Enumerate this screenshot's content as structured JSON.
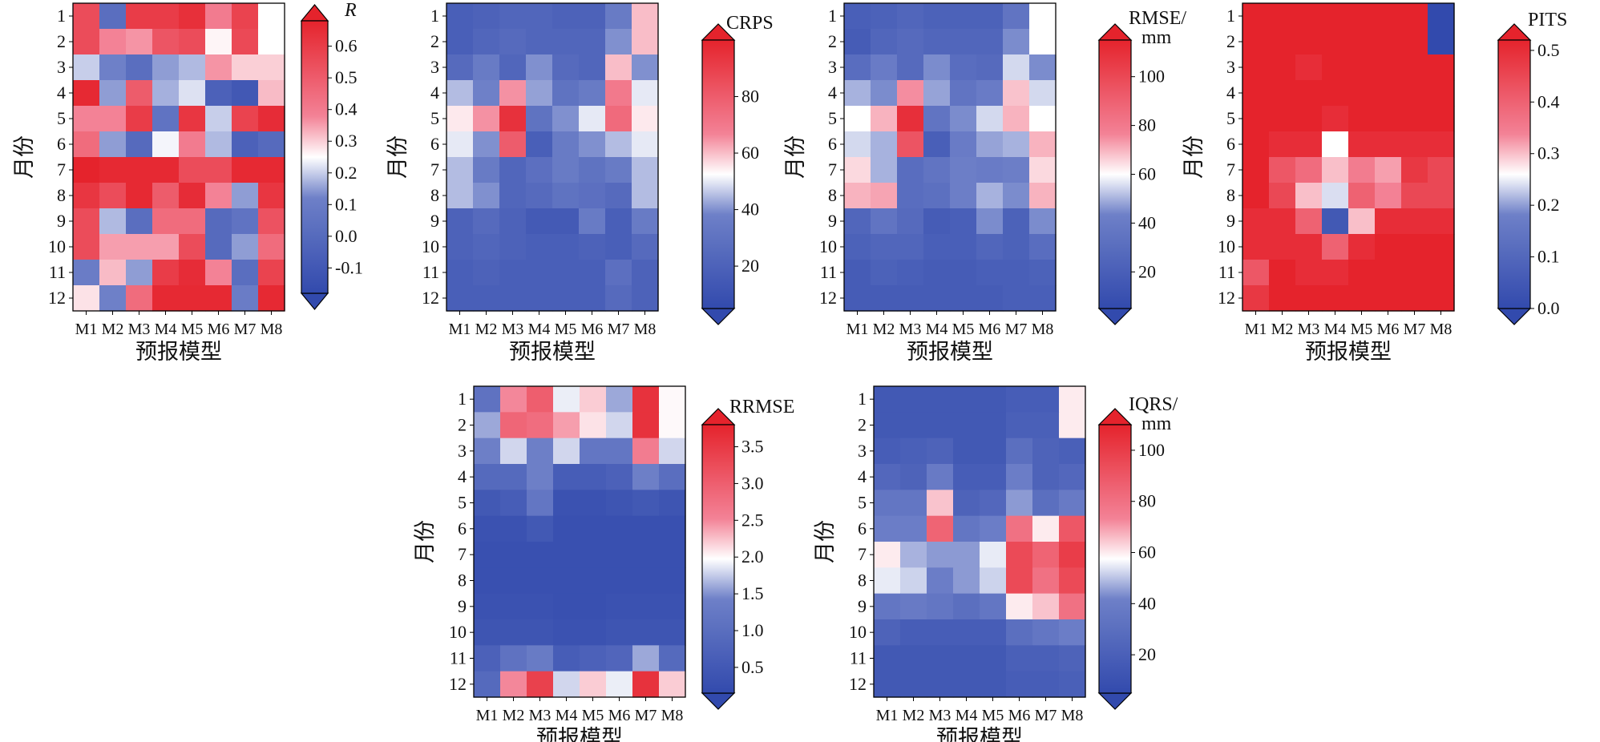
{
  "chart_data": [
    {
      "type": "heatmap",
      "title": "R",
      "xlabel": "预报模型",
      "ylabel": "月份",
      "x": [
        "M1",
        "M2",
        "M3",
        "M4",
        "M5",
        "M6",
        "M7",
        "M8"
      ],
      "y": [
        "1",
        "2",
        "3",
        "4",
        "5",
        "6",
        "7",
        "8",
        "9",
        "10",
        "11",
        "12"
      ],
      "colorbar": {
        "ticks": [
          -0.1,
          0.0,
          0.1,
          0.2,
          0.3,
          0.4,
          0.5,
          0.6
        ],
        "vmin": -0.18,
        "vmax": 0.68,
        "extend": "both"
      },
      "values": [
        [
          0.55,
          0.02,
          0.6,
          0.6,
          0.64,
          0.4,
          0.58,
          0.25
        ],
        [
          0.55,
          0.38,
          0.36,
          0.52,
          0.55,
          0.26,
          0.56,
          0.25
        ],
        [
          0.2,
          0.12,
          0.02,
          0.15,
          0.18,
          0.36,
          0.3,
          0.3
        ],
        [
          0.66,
          0.15,
          0.5,
          0.17,
          0.22,
          -0.05,
          -0.1,
          0.32
        ],
        [
          0.38,
          0.38,
          0.6,
          0.05,
          0.62,
          0.2,
          0.58,
          0.65
        ],
        [
          0.45,
          0.15,
          0.0,
          0.24,
          0.4,
          0.18,
          -0.05,
          0.0
        ],
        [
          0.68,
          0.66,
          0.66,
          0.66,
          0.55,
          0.55,
          0.66,
          0.66
        ],
        [
          0.62,
          0.55,
          0.66,
          0.5,
          0.65,
          0.38,
          0.15,
          0.62
        ],
        [
          0.55,
          0.18,
          0.02,
          0.45,
          0.45,
          0.0,
          0.05,
          0.53
        ],
        [
          0.55,
          0.35,
          0.35,
          0.35,
          0.55,
          0.0,
          0.15,
          0.45
        ],
        [
          0.1,
          0.32,
          0.15,
          0.6,
          0.65,
          0.38,
          0.02,
          0.58
        ],
        [
          0.28,
          0.12,
          0.45,
          0.66,
          0.66,
          0.66,
          0.1,
          0.66
        ]
      ]
    },
    {
      "type": "heatmap",
      "title": "CRPS",
      "xlabel": "预报模型",
      "ylabel": "月份",
      "x": [
        "M1",
        "M2",
        "M3",
        "M4",
        "M5",
        "M6",
        "M7",
        "M8"
      ],
      "y": [
        "1",
        "2",
        "3",
        "4",
        "5",
        "6",
        "7",
        "8",
        "9",
        "10",
        "11",
        "12"
      ],
      "colorbar": {
        "ticks": [
          20,
          40,
          60,
          80
        ],
        "vmin": 5,
        "vmax": 100,
        "extend": "both"
      },
      "values": [
        [
          18,
          20,
          22,
          22,
          20,
          20,
          35,
          60
        ],
        [
          18,
          22,
          25,
          22,
          22,
          22,
          40,
          60
        ],
        [
          25,
          35,
          22,
          40,
          25,
          22,
          60,
          40
        ],
        [
          45,
          38,
          65,
          42,
          30,
          35,
          70,
          50
        ],
        [
          55,
          65,
          95,
          30,
          40,
          50,
          75,
          55
        ],
        [
          50,
          40,
          80,
          18,
          35,
          40,
          45,
          50
        ],
        [
          45,
          35,
          22,
          28,
          35,
          30,
          35,
          45
        ],
        [
          45,
          40,
          22,
          25,
          30,
          28,
          25,
          45
        ],
        [
          20,
          25,
          20,
          15,
          15,
          35,
          18,
          35
        ],
        [
          20,
          22,
          20,
          18,
          18,
          20,
          18,
          25
        ],
        [
          18,
          20,
          18,
          18,
          18,
          18,
          28,
          20
        ],
        [
          18,
          18,
          18,
          18,
          18,
          18,
          25,
          20
        ]
      ]
    },
    {
      "type": "heatmap",
      "title": "RMSE/mm",
      "xlabel": "预报模型",
      "ylabel": "月份",
      "x": [
        "M1",
        "M2",
        "M3",
        "M4",
        "M5",
        "M6",
        "M7",
        "M8"
      ],
      "y": [
        "1",
        "2",
        "3",
        "4",
        "5",
        "6",
        "7",
        "8",
        "9",
        "10",
        "11",
        "12"
      ],
      "colorbar": {
        "ticks": [
          20,
          40,
          60,
          80,
          100
        ],
        "vmin": 5,
        "vmax": 115,
        "extend": "both"
      },
      "values": [
        [
          20,
          22,
          25,
          22,
          22,
          22,
          35,
          60
        ],
        [
          18,
          25,
          28,
          25,
          25,
          25,
          45,
          60
        ],
        [
          30,
          40,
          28,
          45,
          30,
          28,
          55,
          45
        ],
        [
          50,
          45,
          75,
          48,
          35,
          40,
          68,
          55
        ],
        [
          60,
          70,
          110,
          35,
          45,
          55,
          70,
          60
        ],
        [
          55,
          50,
          95,
          20,
          40,
          48,
          50,
          70
        ],
        [
          65,
          50,
          30,
          35,
          42,
          40,
          42,
          65
        ],
        [
          70,
          72,
          30,
          32,
          42,
          50,
          45,
          70
        ],
        [
          25,
          35,
          28,
          18,
          20,
          45,
          22,
          45
        ],
        [
          22,
          25,
          25,
          20,
          20,
          25,
          22,
          30
        ],
        [
          18,
          22,
          20,
          18,
          18,
          20,
          20,
          22
        ],
        [
          18,
          18,
          18,
          18,
          18,
          18,
          20,
          20
        ]
      ]
    },
    {
      "type": "heatmap",
      "title": "PITS",
      "xlabel": "预报模型",
      "ylabel": "月份",
      "x": [
        "M1",
        "M2",
        "M3",
        "M4",
        "M5",
        "M6",
        "M7",
        "M8"
      ],
      "y": [
        "1",
        "2",
        "3",
        "4",
        "5",
        "6",
        "7",
        "8",
        "9",
        "10",
        "11",
        "12"
      ],
      "colorbar": {
        "ticks": [
          0.0,
          0.1,
          0.2,
          0.3,
          0.4,
          0.5
        ],
        "vmin": 0.0,
        "vmax": 0.52,
        "extend": "both"
      },
      "values": [
        [
          0.52,
          0.52,
          0.52,
          0.52,
          0.52,
          0.52,
          0.52,
          0.0
        ],
        [
          0.52,
          0.52,
          0.52,
          0.52,
          0.52,
          0.52,
          0.52,
          0.0
        ],
        [
          0.52,
          0.52,
          0.5,
          0.52,
          0.52,
          0.52,
          0.52,
          0.52
        ],
        [
          0.52,
          0.52,
          0.52,
          0.52,
          0.52,
          0.52,
          0.52,
          0.52
        ],
        [
          0.52,
          0.52,
          0.52,
          0.5,
          0.52,
          0.52,
          0.52,
          0.52
        ],
        [
          0.52,
          0.5,
          0.5,
          0.26,
          0.5,
          0.5,
          0.5,
          0.5
        ],
        [
          0.52,
          0.42,
          0.38,
          0.3,
          0.35,
          0.32,
          0.48,
          0.45
        ],
        [
          0.52,
          0.45,
          0.3,
          0.24,
          0.4,
          0.34,
          0.45,
          0.45
        ],
        [
          0.5,
          0.5,
          0.4,
          0.05,
          0.3,
          0.5,
          0.5,
          0.5
        ],
        [
          0.5,
          0.5,
          0.5,
          0.4,
          0.5,
          0.52,
          0.52,
          0.52
        ],
        [
          0.42,
          0.52,
          0.5,
          0.5,
          0.52,
          0.52,
          0.52,
          0.52
        ],
        [
          0.48,
          0.52,
          0.52,
          0.52,
          0.52,
          0.52,
          0.52,
          0.52
        ]
      ]
    },
    {
      "type": "heatmap",
      "title": "RRMSE",
      "xlabel": "预报模型",
      "ylabel": "月份",
      "x": [
        "M1",
        "M2",
        "M3",
        "M4",
        "M5",
        "M6",
        "M7",
        "M8"
      ],
      "y": [
        "1",
        "2",
        "3",
        "4",
        "5",
        "6",
        "7",
        "8",
        "9",
        "10",
        "11",
        "12"
      ],
      "colorbar": {
        "ticks": [
          0.5,
          1.0,
          1.5,
          2.0,
          2.5,
          3.0,
          3.5
        ],
        "vmin": 0.15,
        "vmax": 3.8,
        "extend": "both"
      },
      "values": [
        [
          1.1,
          2.5,
          3.0,
          1.9,
          2.2,
          1.6,
          3.6,
          2.0
        ],
        [
          1.6,
          2.9,
          2.8,
          2.4,
          2.1,
          1.8,
          3.6,
          2.0
        ],
        [
          1.4,
          1.8,
          1.4,
          1.8,
          1.2,
          1.2,
          2.6,
          1.8
        ],
        [
          0.9,
          0.9,
          1.4,
          0.6,
          0.6,
          0.7,
          1.4,
          1.0
        ],
        [
          0.5,
          0.6,
          1.2,
          0.35,
          0.35,
          0.4,
          0.5,
          0.4
        ],
        [
          0.35,
          0.35,
          0.5,
          0.3,
          0.3,
          0.3,
          0.3,
          0.3
        ],
        [
          0.3,
          0.3,
          0.3,
          0.3,
          0.3,
          0.3,
          0.3,
          0.3
        ],
        [
          0.3,
          0.3,
          0.3,
          0.3,
          0.3,
          0.3,
          0.3,
          0.3
        ],
        [
          0.35,
          0.35,
          0.35,
          0.3,
          0.3,
          0.35,
          0.35,
          0.35
        ],
        [
          0.4,
          0.4,
          0.4,
          0.35,
          0.35,
          0.4,
          0.4,
          0.4
        ],
        [
          0.7,
          1.1,
          1.3,
          0.6,
          0.7,
          0.8,
          1.6,
          0.9
        ],
        [
          0.9,
          2.5,
          3.4,
          1.8,
          2.2,
          1.9,
          3.6,
          2.2
        ]
      ]
    },
    {
      "type": "heatmap",
      "title": "IQRS/mm",
      "xlabel": "预报模型",
      "ylabel": "月份",
      "x": [
        "M1",
        "M2",
        "M3",
        "M4",
        "M5",
        "M6",
        "M7",
        "M8"
      ],
      "y": [
        "1",
        "2",
        "3",
        "4",
        "5",
        "6",
        "7",
        "8",
        "9",
        "10",
        "11",
        "12"
      ],
      "colorbar": {
        "ticks": [
          20,
          40,
          60,
          80,
          100
        ],
        "vmin": 5,
        "vmax": 110,
        "extend": "both"
      },
      "values": [
        [
          15,
          15,
          15,
          15,
          15,
          18,
          18,
          60
        ],
        [
          15,
          15,
          15,
          15,
          15,
          20,
          20,
          60
        ],
        [
          18,
          20,
          22,
          15,
          15,
          30,
          22,
          20
        ],
        [
          25,
          22,
          38,
          18,
          18,
          40,
          22,
          25
        ],
        [
          35,
          35,
          65,
          22,
          25,
          45,
          30,
          38
        ],
        [
          40,
          40,
          85,
          35,
          40,
          80,
          60,
          90
        ],
        [
          60,
          48,
          45,
          45,
          55,
          95,
          85,
          100
        ],
        [
          55,
          52,
          40,
          45,
          52,
          95,
          80,
          95
        ],
        [
          35,
          38,
          35,
          30,
          35,
          60,
          65,
          80
        ],
        [
          22,
          18,
          18,
          18,
          18,
          30,
          35,
          40
        ],
        [
          15,
          15,
          15,
          15,
          15,
          20,
          20,
          22
        ],
        [
          15,
          15,
          15,
          15,
          15,
          18,
          18,
          20
        ]
      ]
    }
  ]
}
